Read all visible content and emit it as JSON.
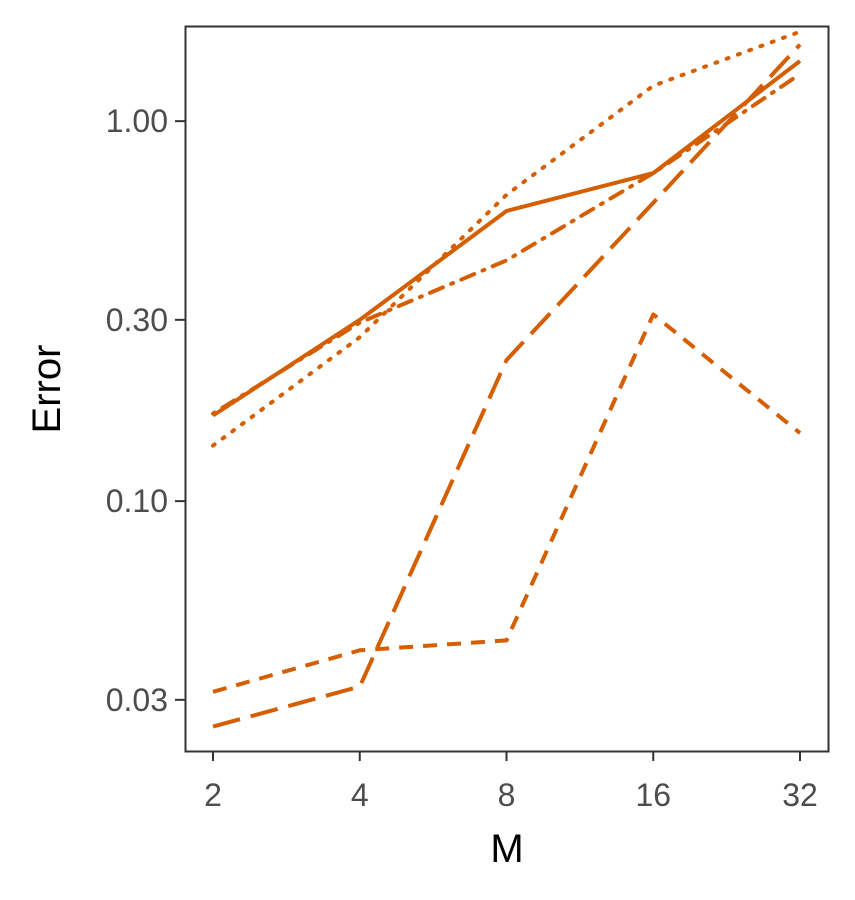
{
  "chart_data": {
    "type": "line",
    "title": "",
    "xlabel": "M",
    "ylabel": "Error",
    "x": [
      2,
      4,
      8,
      16,
      32
    ],
    "x_tick_labels": [
      "2",
      "4",
      "8",
      "16",
      "32"
    ],
    "x_scale": "log2",
    "y_scale": "log10",
    "y_ticks": [
      0.03,
      0.1,
      0.3,
      1.0
    ],
    "y_tick_labels": [
      "0.03",
      "0.10",
      "0.30",
      "1.00"
    ],
    "ylim": [
      0.022,
      1.78
    ],
    "grid": false,
    "legend": "none",
    "line_color": "#d55e00",
    "series": [
      {
        "style": "solid",
        "values": [
          0.168,
          0.3,
          0.58,
          0.73,
          1.44
        ]
      },
      {
        "style": "dotted",
        "values": [
          0.14,
          0.27,
          0.64,
          1.24,
          1.72
        ]
      },
      {
        "style": "dashdot",
        "values": [
          0.17,
          0.295,
          0.43,
          0.73,
          1.33
        ]
      },
      {
        "style": "dashed",
        "values": [
          0.0315,
          0.0405,
          0.043,
          0.31,
          0.151
        ]
      },
      {
        "style": "longdash",
        "values": [
          0.0255,
          0.0325,
          0.235,
          0.61,
          1.59
        ]
      }
    ]
  }
}
